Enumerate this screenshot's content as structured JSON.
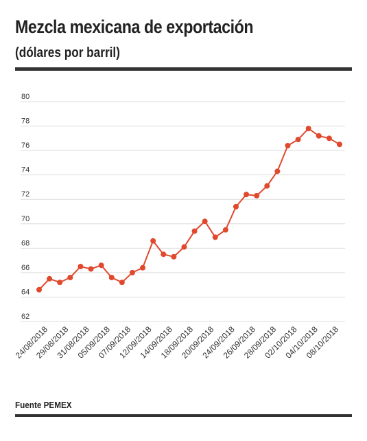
{
  "header": {
    "title": "Mezcla mexicana de exportación",
    "subtitle": "(dólares por barril)"
  },
  "footer": {
    "source": "Fuente PEMEX"
  },
  "colors": {
    "line": "#e0492d",
    "grid": "#dcdcdc",
    "rule": "#333333"
  },
  "chart_data": {
    "type": "line",
    "title": "Mezcla mexicana de exportación",
    "subtitle": "(dólares por barril)",
    "ylim": [
      62,
      80
    ],
    "yticks": [
      62,
      64,
      66,
      68,
      70,
      72,
      74,
      76,
      78,
      80
    ],
    "grid": true,
    "xtick_labels": [
      "24/08/2018",
      "29/08/2018",
      "31/08/2018",
      "05/09/2018",
      "07/09/2018",
      "12/09/2018",
      "14/09/2018",
      "18/09/2018",
      "20/09/2018",
      "24/09/2018",
      "26/09/2018",
      "28/09/2018",
      "02/10/2018",
      "04/10/2018",
      "08/10/2018"
    ],
    "series": [
      {
        "values": [
          64.6,
          65.5,
          65.2,
          65.6,
          66.5,
          66.3,
          66.6,
          65.6,
          65.2,
          66.0,
          66.4,
          68.6,
          67.5,
          67.3,
          68.1,
          69.4,
          70.2,
          68.9,
          69.5,
          71.4,
          72.4,
          72.3,
          73.1,
          74.3,
          76.4,
          76.9,
          77.8,
          77.2,
          77.0,
          76.5
        ]
      }
    ]
  }
}
